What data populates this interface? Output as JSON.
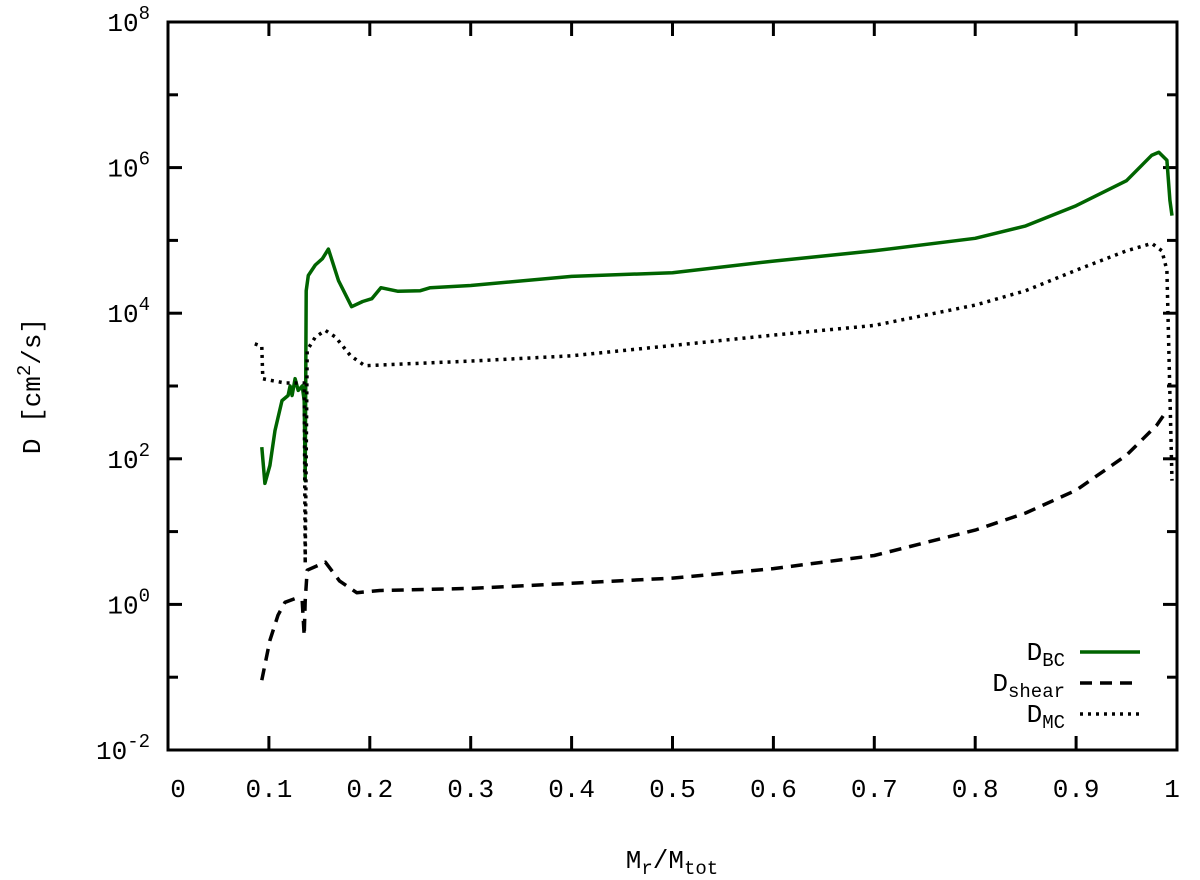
{
  "chart_data": {
    "type": "line",
    "xlabel": {
      "main": "M",
      "sub1": "r",
      "mid": "/M",
      "sub2": "tot"
    },
    "ylabel": {
      "pre": "D  [cm",
      "sup": "2",
      "post": "/s]"
    },
    "xlim": [
      0,
      1
    ],
    "ylim": [
      0.01,
      100000000
    ],
    "yscale": "log",
    "grid": false,
    "legend_position": "bottom-right",
    "x_ticks": [
      "0",
      "0.1",
      "0.2",
      "0.3",
      "0.4",
      "0.5",
      "0.6",
      "0.7",
      "0.8",
      "0.9",
      "1"
    ],
    "y_ticks": [
      {
        "base": "10",
        "exp": "-2",
        "value": 0.01
      },
      {
        "base": "10",
        "exp": "0",
        "value": 1
      },
      {
        "base": "10",
        "exp": "2",
        "value": 100
      },
      {
        "base": "10",
        "exp": "4",
        "value": 10000
      },
      {
        "base": "10",
        "exp": "6",
        "value": 1000000
      },
      {
        "base": "10",
        "exp": "8",
        "value": 100000000
      }
    ],
    "series": [
      {
        "name": "D_BC",
        "label_main": "D",
        "label_sub": "BC",
        "color": "#006400",
        "style": "solid",
        "x": [
          0.093,
          0.096,
          0.101,
          0.106,
          0.113,
          0.119,
          0.121,
          0.123,
          0.126,
          0.129,
          0.133,
          0.135,
          0.136,
          0.137,
          0.139,
          0.146,
          0.153,
          0.159,
          0.169,
          0.182,
          0.193,
          0.202,
          0.211,
          0.228,
          0.25,
          0.26,
          0.3,
          0.4,
          0.5,
          0.6,
          0.7,
          0.8,
          0.85,
          0.9,
          0.95,
          0.975,
          0.982,
          0.99,
          0.993,
          0.995
        ],
        "y": [
          145,
          46,
          81,
          245,
          630,
          740,
          1000,
          740,
          1260,
          870,
          1000,
          630,
          50,
          20400,
          33000,
          46000,
          56000,
          76000,
          28000,
          12300,
          14500,
          15800,
          22400,
          20000,
          20400,
          22400,
          24000,
          32000,
          36000,
          52000,
          72000,
          107000,
          158000,
          300000,
          660000,
          1480000,
          1620000,
          1260000,
          355000,
          219000
        ]
      },
      {
        "name": "D_shear",
        "label_main": "D",
        "label_sub": "shear",
        "color": "#000000",
        "style": "dashed",
        "x": [
          0.093,
          0.101,
          0.109,
          0.116,
          0.126,
          0.133,
          0.135,
          0.136,
          0.138,
          0.156,
          0.17,
          0.187,
          0.21,
          0.3,
          0.4,
          0.5,
          0.6,
          0.7,
          0.8,
          0.85,
          0.9,
          0.95,
          0.98,
          0.99
        ],
        "y": [
          0.091,
          0.32,
          0.71,
          1.07,
          1.2,
          1.12,
          0.37,
          1.12,
          2.95,
          3.8,
          2.1,
          1.45,
          1.55,
          1.66,
          1.95,
          2.3,
          3.1,
          4.7,
          10.5,
          18,
          37,
          112,
          290,
          460
        ]
      },
      {
        "name": "D_MC",
        "label_main": "D",
        "label_sub": "MC",
        "color": "#000000",
        "style": "dotted",
        "x": [
          0.086,
          0.093,
          0.094,
          0.101,
          0.116,
          0.131,
          0.135,
          0.136,
          0.138,
          0.146,
          0.156,
          0.166,
          0.181,
          0.195,
          0.23,
          0.3,
          0.4,
          0.5,
          0.6,
          0.7,
          0.8,
          0.85,
          0.9,
          0.95,
          0.975,
          0.985,
          0.99,
          0.995
        ],
        "y": [
          3800,
          3500,
          1260,
          1200,
          1100,
          1100,
          1100,
          3.6,
          3100,
          4700,
          5800,
          4700,
          2600,
          1900,
          2000,
          2200,
          2600,
          3600,
          5000,
          6800,
          12900,
          20400,
          39000,
          72000,
          91000,
          72000,
          39000,
          50
        ]
      }
    ]
  }
}
